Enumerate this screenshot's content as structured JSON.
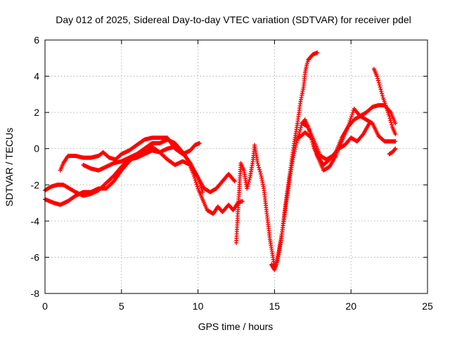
{
  "chart_data": {
    "type": "scatter",
    "title": "Day 012 of 2025, Sidereal Day-to-day VTEC variation (SDTVAR) for receiver pdel",
    "xlabel": "GPS time / hours",
    "ylabel": "SDTVAR / TECUs",
    "xlim": [
      0,
      25
    ],
    "ylim": [
      -8,
      6
    ],
    "x_ticks": [
      "0",
      "5",
      "10",
      "15",
      "20",
      "25"
    ],
    "y_ticks": [
      "-8",
      "-6",
      "-4",
      "-2",
      "0",
      "2",
      "4",
      "6"
    ],
    "grid": true,
    "legend": "none",
    "marker": "plus",
    "colors": {
      "series": "#ff0000",
      "grid": "#a0a0a0",
      "frame": "#000000"
    },
    "series": [
      {
        "x": [
          1.0,
          1.2,
          1.5,
          2.0,
          2.5,
          3.0,
          3.5,
          3.8,
          4.2,
          4.6,
          5.0,
          5.5,
          6.0,
          6.5,
          7.0,
          7.5,
          8.0,
          8.5,
          9.0,
          9.5,
          9.8,
          10.1
        ],
        "y": [
          -1.2,
          -0.8,
          -0.4,
          -0.4,
          -0.5,
          -0.5,
          -0.4,
          -0.2,
          -0.5,
          -0.6,
          -0.3,
          -0.1,
          0.2,
          0.5,
          0.6,
          0.6,
          0.6,
          0.0,
          -0.3,
          -0.1,
          0.2,
          0.3
        ]
      },
      {
        "x": [
          0.0,
          0.3,
          0.6,
          1.0,
          1.5,
          2.0,
          2.5,
          3.0,
          3.5,
          4.0,
          4.5,
          5.0,
          5.5,
          6.0,
          6.5,
          7.0,
          7.5,
          8.0,
          8.5,
          9.0,
          9.3,
          9.7,
          10.0,
          10.3,
          10.6,
          11.0,
          11.3,
          11.6,
          12.0,
          12.3,
          12.6,
          12.9
        ],
        "y": [
          -2.8,
          -2.9,
          -3.0,
          -3.1,
          -2.9,
          -2.6,
          -2.4,
          -2.4,
          -2.2,
          -2.2,
          -1.8,
          -1.2,
          -0.7,
          -0.3,
          0.0,
          0.3,
          0.3,
          0.5,
          0.3,
          -0.2,
          -0.6,
          -1.4,
          -2.2,
          -2.8,
          -3.4,
          -3.6,
          -3.2,
          -3.5,
          -3.1,
          -3.4,
          -3.0,
          -2.9
        ]
      },
      {
        "x": [
          0.0,
          0.4,
          0.8,
          1.2,
          1.6,
          2.0,
          2.5,
          3.0,
          3.5,
          4.0,
          4.5,
          5.0,
          5.5,
          6.0,
          6.5,
          7.0,
          7.5,
          8.0,
          8.5,
          9.0,
          9.5,
          10.0,
          10.4,
          10.8,
          11.2,
          11.6,
          12.0,
          12.4
        ],
        "y": [
          -2.3,
          -2.1,
          -2.0,
          -2.0,
          -2.2,
          -2.4,
          -2.6,
          -2.5,
          -2.3,
          -1.9,
          -1.5,
          -1.0,
          -0.6,
          -0.5,
          -0.3,
          -0.1,
          -0.2,
          0.0,
          0.1,
          -0.2,
          -0.8,
          -1.6,
          -2.2,
          -2.4,
          -2.2,
          -1.8,
          -1.4,
          -1.8
        ]
      },
      {
        "x": [
          2.5,
          3.0,
          3.5,
          4.0,
          4.5,
          5.0,
          5.5,
          6.0,
          6.5,
          7.0,
          7.5,
          8.0,
          8.5,
          9.0,
          9.5,
          10.0,
          10.3
        ],
        "y": [
          -0.9,
          -1.1,
          -1.2,
          -1.0,
          -0.8,
          -0.7,
          -0.5,
          -0.3,
          -0.1,
          0.1,
          -0.2,
          -0.6,
          -0.9,
          -0.7,
          -0.9,
          -1.6,
          -2.4
        ]
      },
      {
        "x": [
          12.5,
          12.6,
          12.7,
          12.8,
          13.0,
          13.2,
          13.4,
          13.6,
          13.7,
          13.9,
          14.1,
          14.3,
          14.5,
          14.7,
          14.9,
          15.0,
          15.1,
          15.3,
          15.5,
          15.7,
          15.9,
          16.1,
          16.3,
          16.5,
          16.7,
          16.9,
          17.0,
          17.1,
          17.2,
          17.3,
          17.5,
          17.8
        ],
        "y": [
          -5.2,
          -3.6,
          -2.2,
          -0.8,
          -1.2,
          -2.2,
          -1.6,
          -0.6,
          0.2,
          -0.8,
          -1.4,
          -2.2,
          -3.6,
          -5.0,
          -6.0,
          -6.6,
          -6.4,
          -5.6,
          -4.6,
          -3.2,
          -2.0,
          -0.8,
          0.4,
          1.4,
          2.6,
          3.4,
          4.2,
          4.6,
          4.9,
          5.0,
          5.2,
          5.3
        ]
      },
      {
        "x": [
          14.8,
          15.0,
          15.2,
          15.4,
          15.6,
          15.8,
          16.0,
          16.2,
          16.4,
          16.6,
          16.8,
          17.0,
          17.2,
          17.4,
          17.6,
          17.9,
          18.2,
          18.6,
          19.0,
          19.4,
          19.8,
          20.2,
          20.6,
          21.0,
          21.4,
          21.8,
          22.2,
          22.6,
          22.9
        ],
        "y": [
          -6.4,
          -6.7,
          -6.2,
          -5.2,
          -4.0,
          -2.8,
          -1.6,
          -0.6,
          0.2,
          0.8,
          1.4,
          1.6,
          1.2,
          0.6,
          0.0,
          -0.6,
          -1.2,
          -1.0,
          -0.4,
          0.4,
          1.2,
          1.6,
          1.8,
          2.0,
          2.3,
          2.4,
          2.4,
          2.0,
          1.4
        ]
      },
      {
        "x": [
          16.6,
          17.0,
          17.4,
          17.8,
          18.2,
          18.6,
          19.0,
          19.4,
          19.8,
          20.2,
          20.6,
          21.0,
          21.4,
          21.8,
          22.2,
          22.6,
          22.9
        ],
        "y": [
          0.6,
          0.9,
          0.6,
          -0.4,
          -0.9,
          -0.6,
          -0.2,
          0.6,
          1.2,
          2.2,
          1.8,
          1.6,
          1.4,
          0.7,
          0.4,
          0.4,
          0.4
        ]
      },
      {
        "x": [
          16.8,
          17.2,
          17.6,
          18.0,
          18.4,
          18.8,
          19.2,
          19.6,
          20.0,
          20.4,
          20.8,
          21.2
        ],
        "y": [
          1.4,
          1.2,
          0.4,
          -0.4,
          -0.6,
          -0.4,
          0.0,
          0.2,
          0.6,
          0.4,
          0.8,
          1.4
        ]
      },
      {
        "x": [
          21.5,
          21.7,
          21.9,
          22.1,
          22.3,
          22.5,
          22.7,
          22.9
        ],
        "y": [
          4.4,
          4.0,
          3.4,
          2.8,
          2.3,
          1.8,
          1.2,
          0.8
        ]
      },
      {
        "x": [
          22.5,
          22.7,
          22.9
        ],
        "y": [
          -0.3,
          -0.2,
          0.0
        ]
      }
    ]
  }
}
